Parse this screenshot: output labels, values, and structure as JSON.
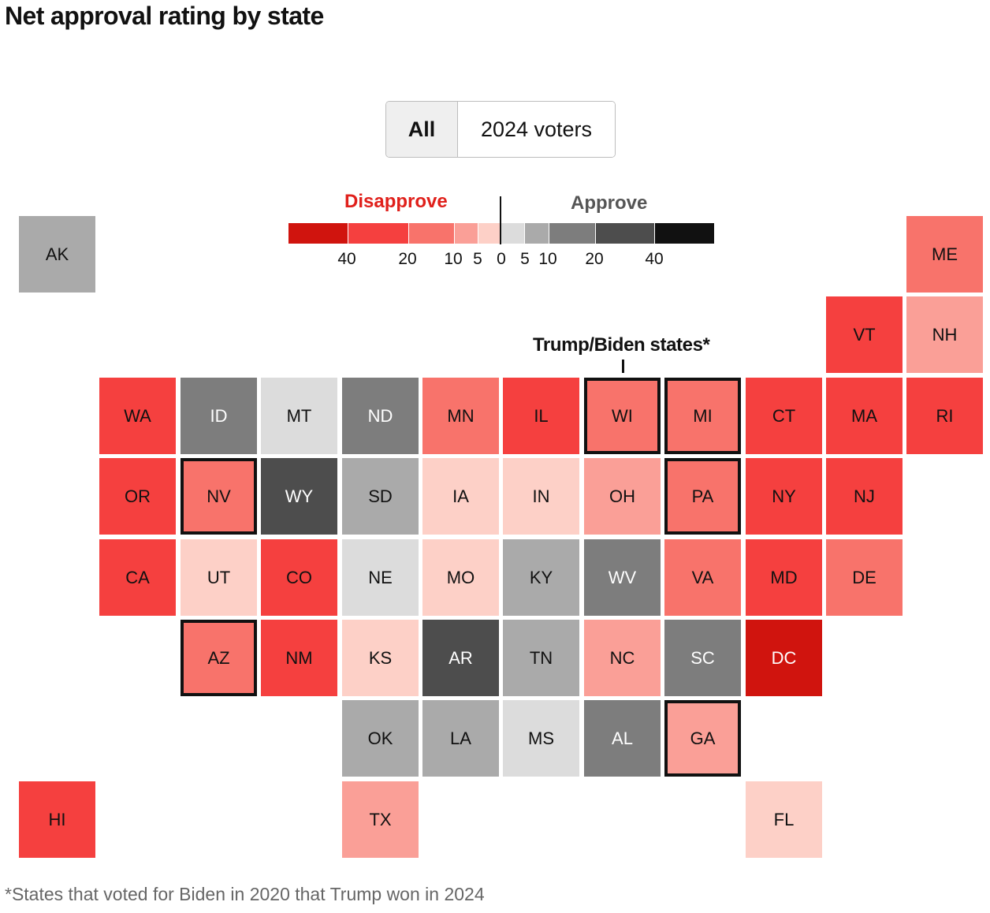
{
  "header": {
    "title": "Net approval rating by state"
  },
  "toggle": {
    "all_label": "All",
    "voters_label": "2024 voters"
  },
  "chart_data": {
    "type": "tile-map",
    "title": "Net approval rating by state",
    "measure": "Net approval (approve minus disapprove)",
    "legend": {
      "disapprove_label": "Disapprove",
      "approve_label": "Approve",
      "bins": [
        {
          "side": "disapprove",
          "min": 40,
          "max": null,
          "color": "#d0140e"
        },
        {
          "side": "disapprove",
          "min": 20,
          "max": 40,
          "color": "#f5403f"
        },
        {
          "side": "disapprove",
          "min": 10,
          "max": 20,
          "color": "#f8736b"
        },
        {
          "side": "disapprove",
          "min": 5,
          "max": 10,
          "color": "#fa9f97"
        },
        {
          "side": "disapprove",
          "min": 0,
          "max": 5,
          "color": "#fdd0c7"
        },
        {
          "side": "approve",
          "min": 0,
          "max": 5,
          "color": "#dcdcdc"
        },
        {
          "side": "approve",
          "min": 5,
          "max": 10,
          "color": "#aaaaaa"
        },
        {
          "side": "approve",
          "min": 10,
          "max": 20,
          "color": "#7d7d7d"
        },
        {
          "side": "approve",
          "min": 20,
          "max": 40,
          "color": "#4d4d4d"
        },
        {
          "side": "approve",
          "min": 40,
          "max": null,
          "color": "#111111"
        }
      ],
      "disapprove_ticks": [
        "40",
        "20",
        "10",
        "5"
      ],
      "zero_tick": "0",
      "approve_ticks": [
        "5",
        "10",
        "20",
        "40"
      ]
    },
    "annotation": "Trump/Biden states*",
    "footnote": "*States that voted for Biden in 2020 that Trump won in 2024",
    "states": [
      {
        "abbr": "AK",
        "row": 0,
        "col": 0,
        "bin": 6,
        "swing": false
      },
      {
        "abbr": "ME",
        "row": 0,
        "col": 11,
        "bin": 2,
        "swing": false
      },
      {
        "abbr": "VT",
        "row": 1,
        "col": 10,
        "bin": 1,
        "swing": false
      },
      {
        "abbr": "NH",
        "row": 1,
        "col": 11,
        "bin": 3,
        "swing": false
      },
      {
        "abbr": "WA",
        "row": 2,
        "col": 1,
        "bin": 1,
        "swing": false
      },
      {
        "abbr": "ID",
        "row": 2,
        "col": 2,
        "bin": 7,
        "swing": false
      },
      {
        "abbr": "MT",
        "row": 2,
        "col": 3,
        "bin": 5,
        "swing": false
      },
      {
        "abbr": "ND",
        "row": 2,
        "col": 4,
        "bin": 7,
        "swing": false
      },
      {
        "abbr": "MN",
        "row": 2,
        "col": 5,
        "bin": 2,
        "swing": false
      },
      {
        "abbr": "IL",
        "row": 2,
        "col": 6,
        "bin": 1,
        "swing": false
      },
      {
        "abbr": "WI",
        "row": 2,
        "col": 7,
        "bin": 2,
        "swing": true
      },
      {
        "abbr": "MI",
        "row": 2,
        "col": 8,
        "bin": 2,
        "swing": true
      },
      {
        "abbr": "CT",
        "row": 2,
        "col": 9,
        "bin": 1,
        "swing": false
      },
      {
        "abbr": "MA",
        "row": 2,
        "col": 10,
        "bin": 1,
        "swing": false
      },
      {
        "abbr": "RI",
        "row": 2,
        "col": 11,
        "bin": 1,
        "swing": false
      },
      {
        "abbr": "OR",
        "row": 3,
        "col": 1,
        "bin": 1,
        "swing": false
      },
      {
        "abbr": "NV",
        "row": 3,
        "col": 2,
        "bin": 2,
        "swing": true
      },
      {
        "abbr": "WY",
        "row": 3,
        "col": 3,
        "bin": 8,
        "swing": false
      },
      {
        "abbr": "SD",
        "row": 3,
        "col": 4,
        "bin": 6,
        "swing": false
      },
      {
        "abbr": "IA",
        "row": 3,
        "col": 5,
        "bin": 4,
        "swing": false
      },
      {
        "abbr": "IN",
        "row": 3,
        "col": 6,
        "bin": 4,
        "swing": false
      },
      {
        "abbr": "OH",
        "row": 3,
        "col": 7,
        "bin": 3,
        "swing": false
      },
      {
        "abbr": "PA",
        "row": 3,
        "col": 8,
        "bin": 2,
        "swing": true
      },
      {
        "abbr": "NY",
        "row": 3,
        "col": 9,
        "bin": 1,
        "swing": false
      },
      {
        "abbr": "NJ",
        "row": 3,
        "col": 10,
        "bin": 1,
        "swing": false
      },
      {
        "abbr": "CA",
        "row": 4,
        "col": 1,
        "bin": 1,
        "swing": false
      },
      {
        "abbr": "UT",
        "row": 4,
        "col": 2,
        "bin": 4,
        "swing": false
      },
      {
        "abbr": "CO",
        "row": 4,
        "col": 3,
        "bin": 1,
        "swing": false
      },
      {
        "abbr": "NE",
        "row": 4,
        "col": 4,
        "bin": 5,
        "swing": false
      },
      {
        "abbr": "MO",
        "row": 4,
        "col": 5,
        "bin": 4,
        "swing": false
      },
      {
        "abbr": "KY",
        "row": 4,
        "col": 6,
        "bin": 6,
        "swing": false
      },
      {
        "abbr": "WV",
        "row": 4,
        "col": 7,
        "bin": 7,
        "swing": false
      },
      {
        "abbr": "VA",
        "row": 4,
        "col": 8,
        "bin": 2,
        "swing": false
      },
      {
        "abbr": "MD",
        "row": 4,
        "col": 9,
        "bin": 1,
        "swing": false
      },
      {
        "abbr": "DE",
        "row": 4,
        "col": 10,
        "bin": 2,
        "swing": false
      },
      {
        "abbr": "AZ",
        "row": 5,
        "col": 2,
        "bin": 2,
        "swing": true
      },
      {
        "abbr": "NM",
        "row": 5,
        "col": 3,
        "bin": 1,
        "swing": false
      },
      {
        "abbr": "KS",
        "row": 5,
        "col": 4,
        "bin": 4,
        "swing": false
      },
      {
        "abbr": "AR",
        "row": 5,
        "col": 5,
        "bin": 8,
        "swing": false
      },
      {
        "abbr": "TN",
        "row": 5,
        "col": 6,
        "bin": 6,
        "swing": false
      },
      {
        "abbr": "NC",
        "row": 5,
        "col": 7,
        "bin": 3,
        "swing": false
      },
      {
        "abbr": "SC",
        "row": 5,
        "col": 8,
        "bin": 7,
        "swing": false
      },
      {
        "abbr": "DC",
        "row": 5,
        "col": 9,
        "bin": 0,
        "swing": false
      },
      {
        "abbr": "OK",
        "row": 6,
        "col": 4,
        "bin": 6,
        "swing": false
      },
      {
        "abbr": "LA",
        "row": 6,
        "col": 5,
        "bin": 6,
        "swing": false
      },
      {
        "abbr": "MS",
        "row": 6,
        "col": 6,
        "bin": 5,
        "swing": false
      },
      {
        "abbr": "AL",
        "row": 6,
        "col": 7,
        "bin": 7,
        "swing": false
      },
      {
        "abbr": "GA",
        "row": 6,
        "col": 8,
        "bin": 3,
        "swing": true
      },
      {
        "abbr": "HI",
        "row": 7,
        "col": 0,
        "bin": 1,
        "swing": false
      },
      {
        "abbr": "TX",
        "row": 7,
        "col": 4,
        "bin": 3,
        "swing": false
      },
      {
        "abbr": "FL",
        "row": 7,
        "col": 9,
        "bin": 4,
        "swing": false
      }
    ]
  }
}
